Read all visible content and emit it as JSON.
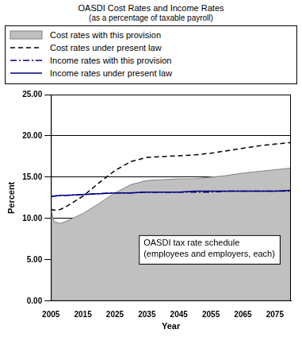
{
  "chart_data": {
    "type": "line",
    "title": "OASDI Cost Rates and Income Rates",
    "subtitle": "(as a percentage of taxable payroll)",
    "x_label": "Year",
    "y_label": "Percent",
    "x": [
      2005,
      2006,
      2008,
      2010,
      2015,
      2020,
      2025,
      2030,
      2035,
      2040,
      2045,
      2050,
      2055,
      2060,
      2065,
      2070,
      2075,
      2080
    ],
    "series": [
      {
        "name": "Cost rates with this provision",
        "type": "area",
        "color": "#c0c0c0",
        "line_style": "solid",
        "values": [
          11.1,
          9.6,
          9.4,
          9.7,
          10.6,
          11.8,
          13.1,
          14.1,
          14.6,
          14.7,
          14.8,
          14.8,
          15.0,
          15.2,
          15.5,
          15.7,
          15.9,
          16.1
        ]
      },
      {
        "name": "Cost rates under present law",
        "type": "line",
        "color": "#000000",
        "line_style": "dashed",
        "values": [
          11.1,
          11.0,
          11.1,
          11.5,
          12.7,
          14.3,
          15.8,
          16.9,
          17.4,
          17.5,
          17.6,
          17.7,
          17.9,
          18.2,
          18.5,
          18.8,
          19.0,
          19.2
        ]
      },
      {
        "name": "Income rates with this provision",
        "type": "line",
        "color": "#000080",
        "line_style": "dashdot",
        "values": [
          12.7,
          12.7,
          12.8,
          12.8,
          12.9,
          13.0,
          13.1,
          13.1,
          13.2,
          13.2,
          13.2,
          13.2,
          13.2,
          13.3,
          13.3,
          13.3,
          13.3,
          13.3
        ]
      },
      {
        "name": "Income rates under present law",
        "type": "line",
        "color": "#000080",
        "line_style": "solid",
        "values": [
          12.7,
          12.7,
          12.8,
          12.8,
          12.9,
          13.0,
          13.1,
          13.1,
          13.2,
          13.2,
          13.2,
          13.3,
          13.3,
          13.3,
          13.3,
          13.3,
          13.3,
          13.4
        ]
      }
    ],
    "xlim": [
      2005,
      2080
    ],
    "xticks": [
      2005,
      2015,
      2025,
      2035,
      2045,
      2055,
      2065,
      2075
    ],
    "ylim": [
      0,
      25
    ],
    "yticks": [
      {
        "value": 0,
        "label": "0.00"
      },
      {
        "value": 5,
        "label": "5.00"
      },
      {
        "value": 10,
        "label": "10.00"
      },
      {
        "value": 15,
        "label": "15.00"
      },
      {
        "value": 20,
        "label": "20.00"
      },
      {
        "value": 25,
        "label": "25.00"
      }
    ],
    "annotation": [
      "OASDI tax rate schedule",
      "(employees and employers, each)"
    ],
    "grid": true,
    "legend": "top"
  }
}
